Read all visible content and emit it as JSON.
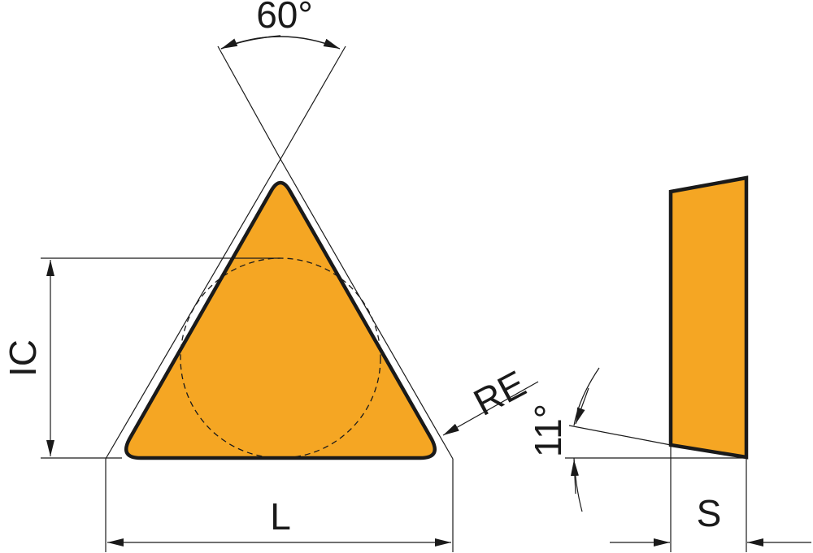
{
  "labels": {
    "angle_top": "60°",
    "ic": "IC",
    "l": "L",
    "re": "RE",
    "clearance_angle": "11°",
    "s": "S"
  },
  "colors": {
    "insert_fill": "#F5A623",
    "outline": "#1a1a1a"
  }
}
